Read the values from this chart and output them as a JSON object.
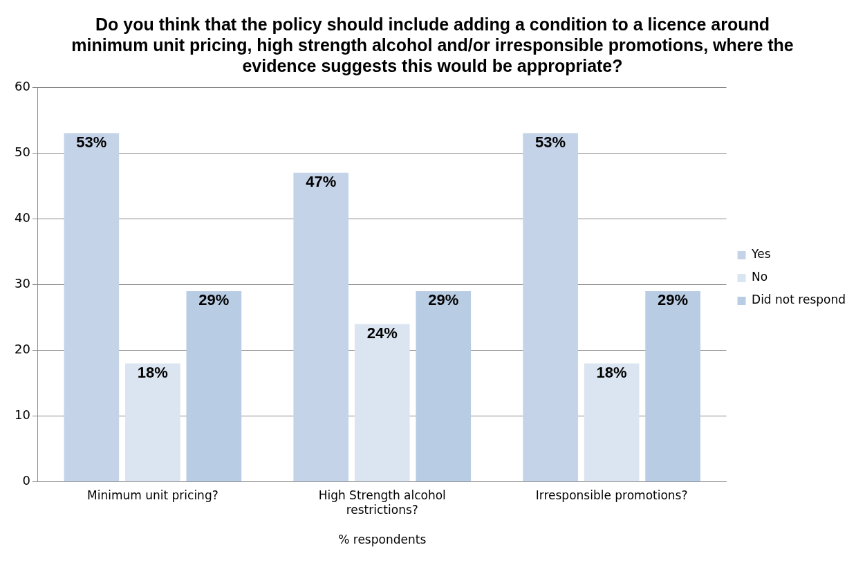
{
  "chart_data": {
    "type": "bar",
    "title": "Do you think that the policy should include adding a condition to a licence around minimum unit pricing, high strength alcohol and/or irresponsible promotions, where the evidence suggests this would be appropriate?",
    "categories": [
      "Minimum unit pricing?",
      "High Strength alcohol restrictions?",
      "Irresponsible promotions?"
    ],
    "xlabel": "% respondents",
    "series": [
      {
        "name": "Yes",
        "color": "#c5d3e8",
        "values": [
          53,
          47,
          53
        ],
        "value_labels": [
          "53%",
          "47%",
          "53%"
        ]
      },
      {
        "name": "No",
        "color": "#dbe5f1",
        "values": [
          18,
          24,
          18
        ],
        "value_labels": [
          "18%",
          "24%",
          "18%"
        ]
      },
      {
        "name": "Did not respond",
        "color": "#b8cce4",
        "values": [
          29,
          29,
          29
        ],
        "value_labels": [
          "29%",
          "29%",
          "29%"
        ]
      }
    ],
    "ylim": [
      0,
      60
    ],
    "yticks": [
      0,
      10,
      20,
      30,
      40,
      50,
      60
    ],
    "grid": "y",
    "legend": "right"
  }
}
